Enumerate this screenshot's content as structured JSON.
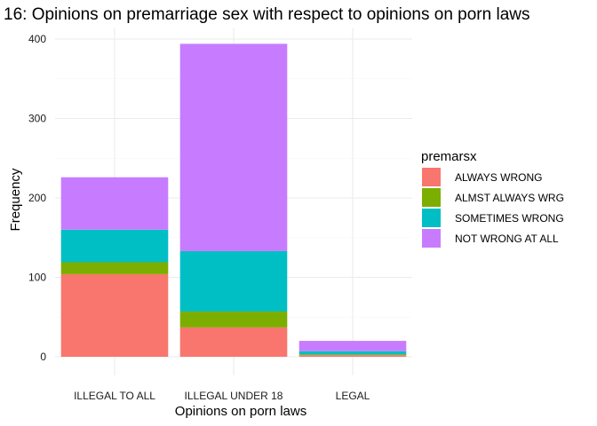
{
  "chart_data": {
    "type": "bar",
    "stacked": true,
    "title": "16: Opinions on premarriage sex with respect to opinions on porn laws",
    "xlabel": "Opinions on porn laws",
    "ylabel": "Frequency",
    "categories": [
      "ILLEGAL TO ALL",
      "ILLEGAL UNDER 18",
      "LEGAL"
    ],
    "ylim": [
      0,
      415
    ],
    "yticks": [
      0,
      100,
      200,
      300,
      400
    ],
    "grid": true,
    "legend": {
      "title": "premarsx",
      "placement": "right"
    },
    "series": [
      {
        "name": "ALWAYS WRONG",
        "color": "#F8766D",
        "values": [
          104,
          37,
          2
        ]
      },
      {
        "name": "ALMST ALWAYS WRG",
        "color": "#7CAE00",
        "values": [
          15,
          20,
          1
        ]
      },
      {
        "name": "SOMETIMES WRONG",
        "color": "#00BFC4",
        "values": [
          41,
          76,
          4
        ]
      },
      {
        "name": "NOT WRONG AT ALL",
        "color": "#C77CFF",
        "values": [
          66,
          261,
          13
        ]
      }
    ]
  }
}
